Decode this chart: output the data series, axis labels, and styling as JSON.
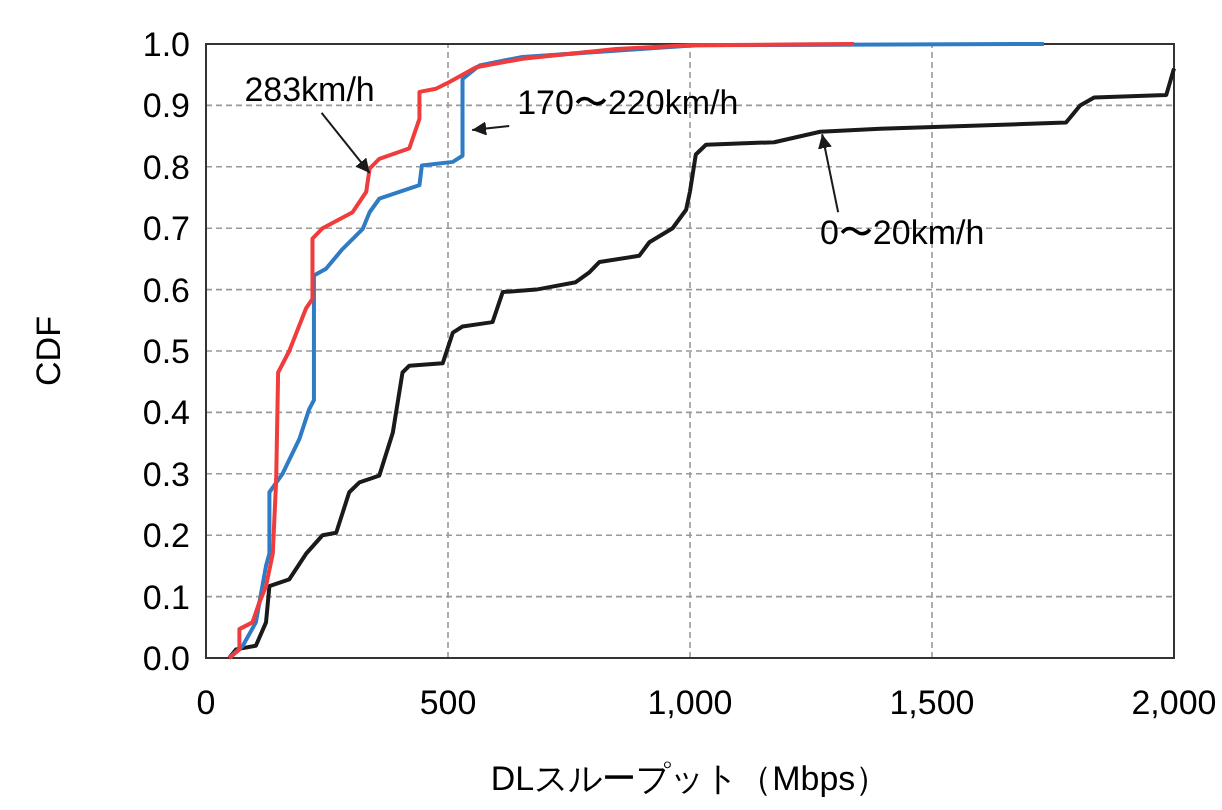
{
  "chart_data": {
    "type": "line",
    "xlabel": "DLスループット（Mbps）",
    "ylabel": "CDF",
    "xlim": [
      0,
      2000
    ],
    "ylim": [
      0,
      1
    ],
    "xticks": [
      0,
      500,
      {
        "value": 1000,
        "label": "1,000"
      },
      {
        "value": 1500,
        "label": "1,500"
      },
      {
        "value": 2000,
        "label": "2,000"
      }
    ],
    "yticks": [
      {
        "value": 0,
        "label": "0.0"
      },
      {
        "value": 0.1,
        "label": "0.1"
      },
      {
        "value": 0.2,
        "label": "0.2"
      },
      {
        "value": 0.3,
        "label": "0.3"
      },
      {
        "value": 0.4,
        "label": "0.4"
      },
      {
        "value": 0.5,
        "label": "0.5"
      },
      {
        "value": 0.6,
        "label": "0.6"
      },
      {
        "value": 0.7,
        "label": "0.7"
      },
      {
        "value": 0.8,
        "label": "0.8"
      },
      {
        "value": 0.9,
        "label": "0.9"
      },
      {
        "value": 1,
        "label": "1.0"
      }
    ],
    "grid": true,
    "marker": "none",
    "line_style": "solid",
    "series": [
      {
        "color": "#1a1a1a",
        "x": [
          48,
          62,
          103,
          124,
          131,
          172,
          207,
          241,
          269,
          296,
          317,
          358,
          386,
          406,
          420,
          489,
          510,
          530,
          592,
          613,
          682,
          764,
          792,
          813,
          895,
          916,
          964,
          992,
          1000,
          1012,
          1033,
          1174,
          1269,
          1393,
          1777,
          1806,
          1835,
          1984,
          2000
        ],
        "values": [
          0,
          0.014,
          0.02,
          0.058,
          0.117,
          0.128,
          0.17,
          0.2,
          0.204,
          0.27,
          0.286,
          0.297,
          0.367,
          0.465,
          0.476,
          0.48,
          0.53,
          0.54,
          0.547,
          0.596,
          0.6,
          0.612,
          0.628,
          0.645,
          0.655,
          0.677,
          0.7,
          0.73,
          0.76,
          0.82,
          0.836,
          0.84,
          0.857,
          0.862,
          0.872,
          0.9,
          0.913,
          0.917,
          0.96
        ]
      },
      {
        "color": "#2f7bc4",
        "x": [
          48,
          76,
          103,
          124,
          131,
          131,
          158,
          193,
          213,
          223,
          223,
          248,
          282,
          324,
          338,
          358,
          441,
          446,
          510,
          530,
          530,
          565,
          654,
          1012,
          1731
        ],
        "values": [
          0,
          0.02,
          0.058,
          0.15,
          0.17,
          0.27,
          0.3,
          0.357,
          0.405,
          0.42,
          0.623,
          0.634,
          0.666,
          0.699,
          0.726,
          0.748,
          0.77,
          0.802,
          0.808,
          0.818,
          0.943,
          0.965,
          0.979,
          0.998,
          1
        ]
      },
      {
        "color": "#f03c3c",
        "x": [
          48,
          69,
          69,
          96,
          110,
          124,
          138,
          145,
          149,
          172,
          207,
          220,
          220,
          241,
          303,
          331,
          338,
          358,
          420,
          441,
          441,
          475,
          503,
          558,
          654,
          847,
          999,
          1339
        ],
        "values": [
          0,
          0.014,
          0.047,
          0.058,
          0.09,
          0.117,
          0.17,
          0.29,
          0.465,
          0.5,
          0.57,
          0.585,
          0.683,
          0.7,
          0.726,
          0.759,
          0.797,
          0.813,
          0.83,
          0.878,
          0.922,
          0.927,
          0.938,
          0.962,
          0.976,
          0.992,
          0.998,
          1
        ]
      }
    ],
    "annotations": [
      {
        "text": "283km/h",
        "x": 338,
        "y": 0.79
      },
      {
        "text": "170〜220km/h",
        "x": 550,
        "y": 0.86
      },
      {
        "text": "0〜20km/h",
        "x": 1273,
        "y": 0.853
      }
    ]
  }
}
